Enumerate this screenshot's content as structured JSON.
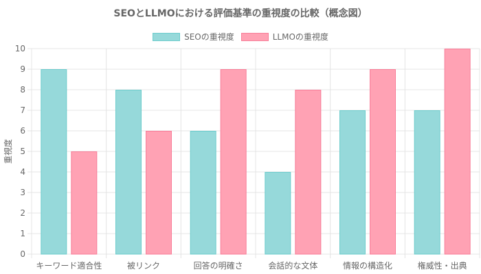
{
  "chart_data": {
    "type": "bar",
    "title": "SEOとLLMOにおける評価基準の重視度の比較（概念図）",
    "ylabel": "重視度",
    "xlabel": "",
    "ylim": [
      0,
      10
    ],
    "yticks": [
      0,
      1,
      2,
      3,
      4,
      5,
      6,
      7,
      8,
      9,
      10
    ],
    "grid": true,
    "legend_position": "top-center",
    "categories": [
      "キーワード適合性",
      "被リンク",
      "回答の明確さ",
      "会話的な文体",
      "情報の構造化",
      "権威性・出典"
    ],
    "series": [
      {
        "name": "SEOの重視度",
        "values": [
          9,
          8,
          6,
          4,
          7,
          7
        ],
        "fill": "#96d9da",
        "stroke": "#6ccccc"
      },
      {
        "name": "LLMOの重視度",
        "values": [
          5,
          6,
          9,
          8,
          9,
          10
        ],
        "fill": "#ffa2b4",
        "stroke": "#f87d98"
      }
    ]
  }
}
